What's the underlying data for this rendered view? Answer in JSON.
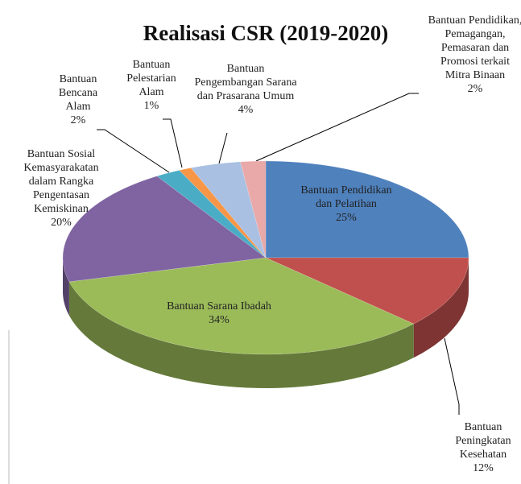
{
  "chart_data": {
    "type": "pie3d",
    "title": "Realisasi CSR (2019-2020)",
    "categories": [
      "Bantuan Pendidikan dan Pelatihan",
      "Bantuan Peningkatan Kesehatan",
      "Bantuan Sarana Ibadah",
      "Bantuan Sosial Kemasyarakatan dalam Rangka Pengentasan Kemiskinan",
      "Bantuan Bencana Alam",
      "Bantuan Pelestarian Alam",
      "Bantuan Pengembangan Sarana dan Prasarana Umum",
      "Bantuan Pendidikan, Pemagangan, Pemasaran dan Promosi terkait Mitra Binaan"
    ],
    "values": [
      25,
      12,
      34,
      20,
      2,
      1,
      4,
      2
    ],
    "value_labels": [
      "25%",
      "12%",
      "34%",
      "20%",
      "2%",
      "1%",
      "4%",
      "2%"
    ],
    "colors": [
      "#4f81bd",
      "#c0504d",
      "#9bbb59",
      "#8064a2",
      "#4bacc6",
      "#f79646",
      "#a9c0e3",
      "#e8a9a8"
    ]
  }
}
